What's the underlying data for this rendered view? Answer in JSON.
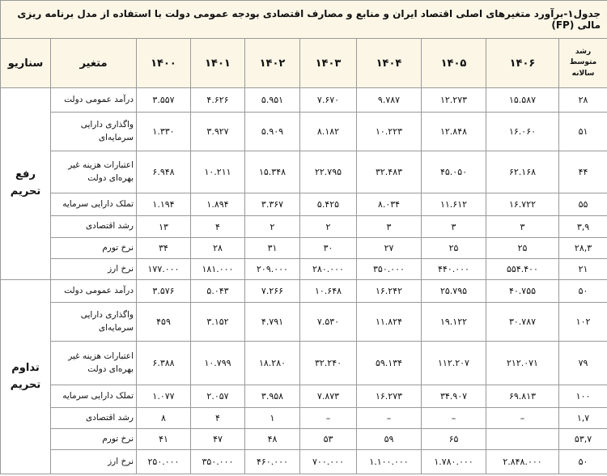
{
  "title": "جدول۱-برآورد متغیرهای اصلی اقتصاد ایران و منابع و مصارف اقتصادی بودجه عمومی دولت با استفاده از مدل برنامه ریزی مالی (FP)",
  "header": {
    "scenario": "سناریو",
    "variable": "متغیر",
    "years": [
      "۱۴۰۰",
      "۱۴۰۱",
      "۱۴۰۲",
      "۱۴۰۳",
      "۱۴۰۴",
      "۱۴۰۵",
      "۱۴۰۶"
    ],
    "growth": "رشد متوسط سالانه"
  },
  "groups": [
    {
      "scenario": "رفع تحریم",
      "rows": [
        {
          "variable": "درآمد عمومی دولت",
          "values": [
            "۳.۵۵۷",
            "۴.۶۲۶",
            "۵.۹۵۱",
            "۷.۶۷۰",
            "۹.۷۸۷",
            "۱۲.۲۷۳",
            "۱۵.۵۸۷"
          ],
          "growth": "۲۸"
        },
        {
          "variable": "واگذاری دارایی سرمایه‌ای",
          "values": [
            "۱.۳۳۰",
            "۳.۹۲۷",
            "۵.۹۰۹",
            "۸.۱۸۲",
            "۱۰.۲۲۳",
            "۱۲.۸۴۸",
            "۱۶.۰۶۰"
          ],
          "growth": "۵۱"
        },
        {
          "variable": "اعتبارات هزینه غیر بهره‌ای دولت",
          "values": [
            "۶.۹۴۸",
            "۱۰.۲۱۱",
            "۱۵.۳۴۸",
            "۲۲.۷۹۵",
            "۳۲.۴۸۳",
            "۴۵.۰۵۰",
            "۶۲.۱۶۸"
          ],
          "growth": "۴۴"
        },
        {
          "variable": "تملک دارایی سرمایه",
          "values": [
            "۱.۱۹۴",
            "۱.۸۹۴",
            "۳.۳۶۷",
            "۵.۴۲۵",
            "۸.۰۳۴",
            "۱۱.۶۱۲",
            "۱۶.۷۲۲"
          ],
          "growth": "۵۵"
        },
        {
          "variable": "رشد اقتصادی",
          "values": [
            "۱۳",
            "۴",
            "۲",
            "۲",
            "۳",
            "۳",
            "۳"
          ],
          "growth": "۳,۹"
        },
        {
          "variable": "نرخ تورم",
          "values": [
            "۳۴",
            "۲۸",
            "۳۱",
            "۳۰",
            "۲۷",
            "۲۵",
            "۲۵"
          ],
          "growth": "۲۸,۳"
        },
        {
          "variable": "نرخ ارز",
          "values": [
            "۱۷۷.۰۰۰",
            "۱۸۱.۰۰۰",
            "۲۰۹.۰۰۰",
            "۲۸۰.۰۰۰",
            "۳۵۰.۰۰۰",
            "۴۴۰.۰۰۰",
            "۵۵۴.۴۰۰"
          ],
          "growth": "۲۱"
        }
      ]
    },
    {
      "scenario": "تداوم تحریم",
      "rows": [
        {
          "variable": "درآمد عمومی دولت",
          "values": [
            "۳.۵۷۶",
            "۵.۰۴۳",
            "۷.۲۶۶",
            "۱۰.۶۴۸",
            "۱۶.۲۴۲",
            "۲۵.۷۹۵",
            "۴۰.۷۵۵"
          ],
          "growth": "۵۰"
        },
        {
          "variable": "واگذاری دارایی سرمایه‌ای",
          "values": [
            "۴۵۹",
            "۳.۱۵۲",
            "۴.۷۹۱",
            "۷.۵۳۰",
            "۱۱.۸۲۴",
            "۱۹.۱۲۲",
            "۳۰.۷۸۷"
          ],
          "growth": "۱۰۲"
        },
        {
          "variable": "اعتبارات هزینه غیر بهره‌ای دولت",
          "values": [
            "۶.۳۸۸",
            "۱۰.۷۹۹",
            "۱۸.۲۸۰",
            "۳۲.۲۴۰",
            "۵۹.۱۳۴",
            "۱۱۲.۲۰۷",
            "۲۱۲.۰۷۱"
          ],
          "growth": "۷۹"
        },
        {
          "variable": "تملک دارایی سرمایه",
          "values": [
            "۱.۰۷۷",
            "۲.۰۵۷",
            "۳.۹۵۸",
            "۷.۸۷۳",
            "۱۶.۲۷۳",
            "۳۴.۹۰۷",
            "۶۹.۸۱۳"
          ],
          "growth": "۱۰۰"
        },
        {
          "variable": "رشد اقتصادی",
          "values": [
            "۸",
            "۴",
            "۱",
            "–",
            "–",
            "–",
            "–"
          ],
          "growth": "۱,۷"
        },
        {
          "variable": "نرخ تورم",
          "values": [
            "۴۱",
            "۴۷",
            "۴۸",
            "۵۳",
            "۵۹",
            "۶۵",
            null
          ],
          "growth": "۵۳,۷"
        },
        {
          "variable": "نرخ ارز",
          "values": [
            "۲۵۰.۰۰۰",
            "۳۵۰.۰۰۰",
            "۴۶۰.۰۰۰",
            "۷۰۰.۰۰۰",
            "۱.۱۰۰.۰۰۰",
            "۱.۷۸۰.۰۰۰",
            "۲.۸۴۸.۰۰۰"
          ],
          "growth": "۵۰"
        }
      ]
    }
  ]
}
